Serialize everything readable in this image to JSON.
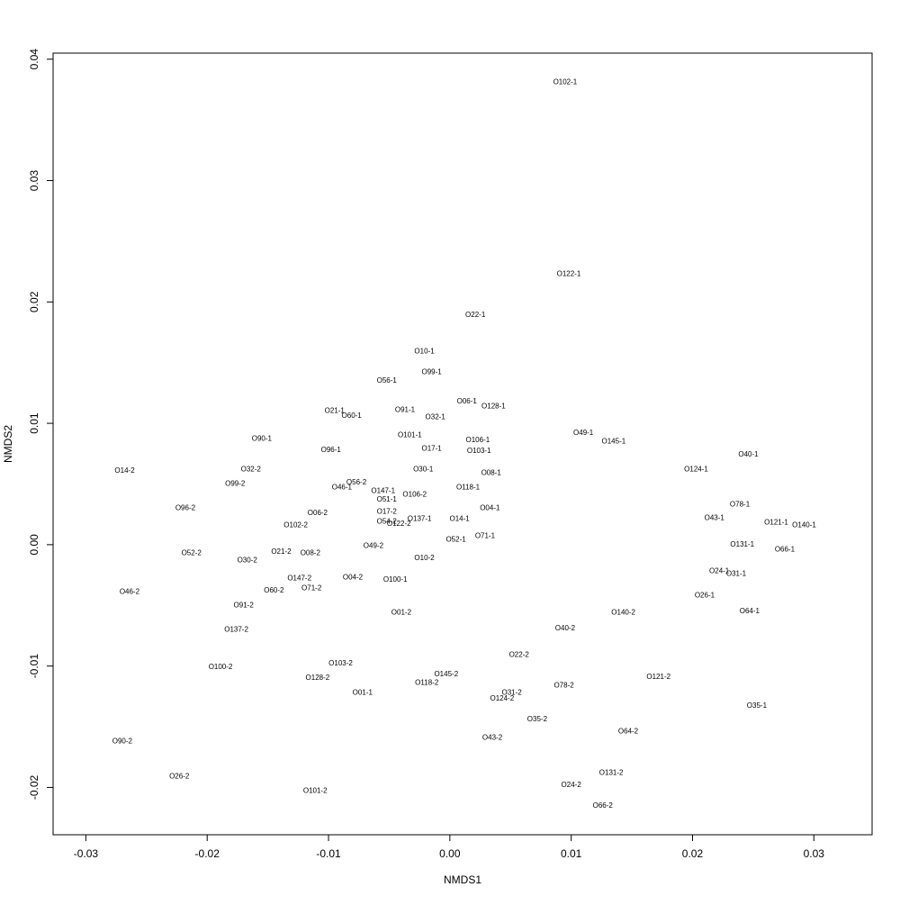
{
  "chart_data": {
    "type": "scatter",
    "x_label": "NMDS1",
    "y_label": "NMDS2",
    "xlim": [
      -0.0327,
      0.0348
    ],
    "ylim": [
      -0.0239,
      0.0405
    ],
    "xticks": [
      -0.03,
      -0.02,
      -0.01,
      {
        "value": 0,
        "label": "0.00"
      },
      0.01,
      0.02,
      0.03
    ],
    "yticks": [
      -0.02,
      -0.01,
      {
        "value": 0,
        "label": "0.00"
      },
      0.01,
      0.02,
      0.03,
      0.04
    ],
    "color": "#000000",
    "labels": [
      "O102-1",
      "O122-1",
      "O22-1",
      "O10-1",
      "O99-1",
      "O56-1",
      "O06-1",
      "O128-1",
      "O21-1",
      "O91-1",
      "O60-1",
      "O32-1",
      "O49-1",
      "O101-1",
      "O145-1",
      "O90-1",
      "O106-1",
      "O17-1",
      "O96-1",
      "O103-1",
      "O40-1",
      "O14-2",
      "O32-2",
      "O124-1",
      "O30-1",
      "O08-1",
      "O99-2",
      "O56-2",
      "O46-1",
      "O118-1",
      "O147-1",
      "O106-2",
      "O51-1",
      "O78-1",
      "O96-2",
      "O04-1",
      "O17-2",
      "O06-2",
      "O43-1",
      "O137-1",
      "O14-1",
      "O54-2",
      "O122-2",
      "O121-1",
      "O140-1",
      "O102-2",
      "O71-1",
      "O52-1",
      "O131-1",
      "O49-2",
      "O66-1",
      "O52-2",
      "O21-2",
      "O08-2",
      "O10-2",
      "O30-2",
      "O24-1",
      "O31-1",
      "O147-2",
      "O04-2",
      "O100-1",
      "O60-2",
      "O71-2",
      "O46-2",
      "O26-1",
      "O91-2",
      "O64-1",
      "O140-2",
      "O01-2",
      "O137-2",
      "O40-2",
      "O22-2",
      "O103-2",
      "O100-2",
      "O145-2",
      "O121-2",
      "O128-2",
      "O118-2",
      "O78-2",
      "O01-1",
      "O31-2",
      "O124-2",
      "O35-1",
      "O35-2",
      "O64-2",
      "O43-2",
      "O90-2",
      "O131-2",
      "O26-2",
      "O24-2",
      "O101-2",
      "O66-2"
    ],
    "x": [
      0.0095,
      0.0098,
      0.0021,
      -0.0021,
      -0.0015,
      -0.0052,
      0.0014,
      0.0036,
      -0.0095,
      -0.0037,
      -0.0081,
      -0.0012,
      0.011,
      -0.0033,
      0.0135,
      -0.0155,
      0.0023,
      -0.0015,
      -0.0098,
      0.0024,
      0.0246,
      -0.0268,
      -0.0164,
      0.0203,
      -0.0022,
      0.0034,
      -0.0177,
      -0.0077,
      -0.0089,
      0.0015,
      -0.0055,
      -0.0029,
      -0.0052,
      0.0239,
      -0.0218,
      0.0033,
      -0.0052,
      -0.0109,
      0.0218,
      -0.0025,
      0.0008,
      -0.0052,
      -0.0042,
      0.0269,
      0.0292,
      -0.0127,
      0.0029,
      0.0005,
      0.0241,
      -0.0063,
      0.0276,
      -0.0213,
      -0.0139,
      -0.0115,
      -0.0021,
      -0.0167,
      0.0222,
      0.0236,
      -0.0124,
      -0.008,
      -0.0045,
      -0.0145,
      -0.0114,
      -0.0264,
      0.021,
      -0.017,
      0.0247,
      0.0143,
      -0.004,
      -0.0176,
      0.0095,
      0.0057,
      -0.009,
      -0.0189,
      -0.0003,
      0.0172,
      -0.0109,
      -0.0019,
      0.0094,
      -0.0072,
      0.0051,
      0.0043,
      0.0253,
      0.0072,
      0.0147,
      0.0035,
      -0.027,
      0.0133,
      -0.0223,
      0.01,
      -0.0111,
      0.0126
    ],
    "values": [
      0.0381,
      0.0223,
      0.0189,
      0.0159,
      0.0142,
      0.0135,
      0.0118,
      0.0114,
      0.011,
      0.0111,
      0.0106,
      0.0105,
      0.0092,
      0.009,
      0.0085,
      0.0087,
      0.0086,
      0.0079,
      0.0078,
      0.0077,
      0.0074,
      0.0061,
      0.0062,
      0.0062,
      0.0062,
      0.0059,
      0.005,
      0.0051,
      0.0047,
      0.0047,
      0.0044,
      0.0041,
      0.0037,
      0.0033,
      0.003,
      0.003,
      0.0027,
      0.0026,
      0.0022,
      0.0021,
      0.0021,
      0.0019,
      0.0017,
      0.0018,
      0.0016,
      0.0016,
      0.0007,
      0.0004,
      0.0,
      -0.0001,
      -0.0004,
      -0.0007,
      -0.0006,
      -0.0007,
      -0.0011,
      -0.0013,
      -0.0022,
      -0.0024,
      -0.0028,
      -0.0027,
      -0.0029,
      -0.0038,
      -0.0036,
      -0.0039,
      -0.0042,
      -0.005,
      -0.0055,
      -0.0056,
      -0.0056,
      -0.007,
      -0.0069,
      -0.0091,
      -0.0098,
      -0.0101,
      -0.0107,
      -0.0109,
      -0.011,
      -0.0114,
      -0.0116,
      -0.0122,
      -0.0122,
      -0.0127,
      -0.0133,
      -0.0144,
      -0.0154,
      -0.0159,
      -0.0162,
      -0.0188,
      -0.0191,
      -0.0198,
      -0.0203,
      -0.0215
    ]
  }
}
